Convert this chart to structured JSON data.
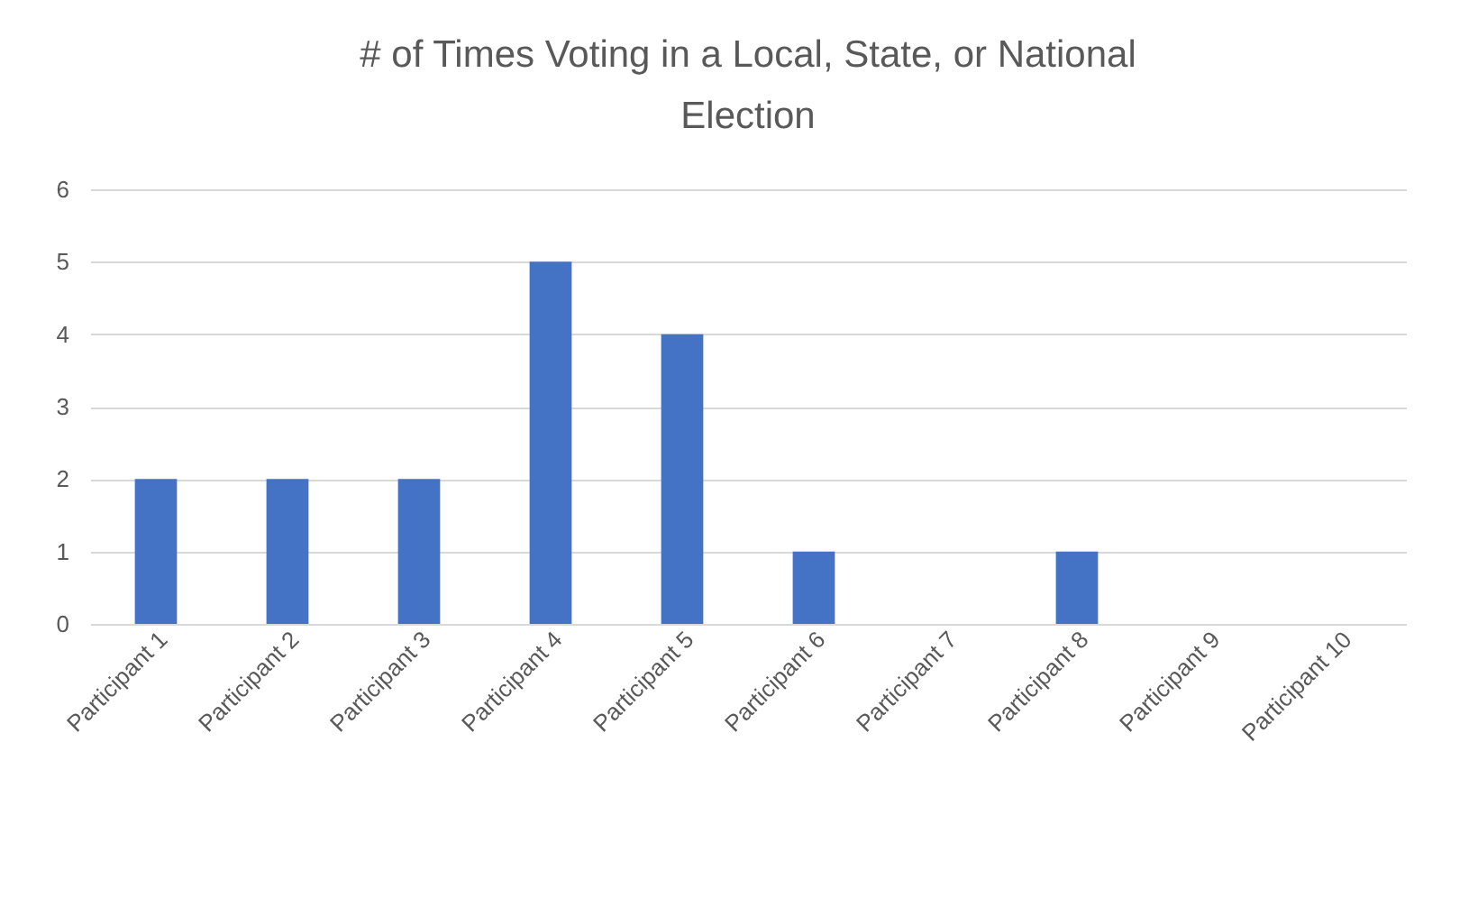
{
  "chart_data": {
    "type": "bar",
    "title": "# of Times Voting in a Local, State, or National Election",
    "categories": [
      "Participant 1",
      "Participant 2",
      "Participant 3",
      "Participant 4",
      "Participant 5",
      "Participant 6",
      "Participant 7",
      "Participant 8",
      "Participant 9",
      "Participant 10"
    ],
    "values": [
      2,
      2,
      2,
      5,
      4,
      1,
      0,
      1,
      0,
      0
    ],
    "color": "#4472c4",
    "ylim": [
      0,
      6
    ],
    "yticks": [
      0,
      1,
      2,
      3,
      4,
      5,
      6
    ],
    "grid": "y"
  }
}
